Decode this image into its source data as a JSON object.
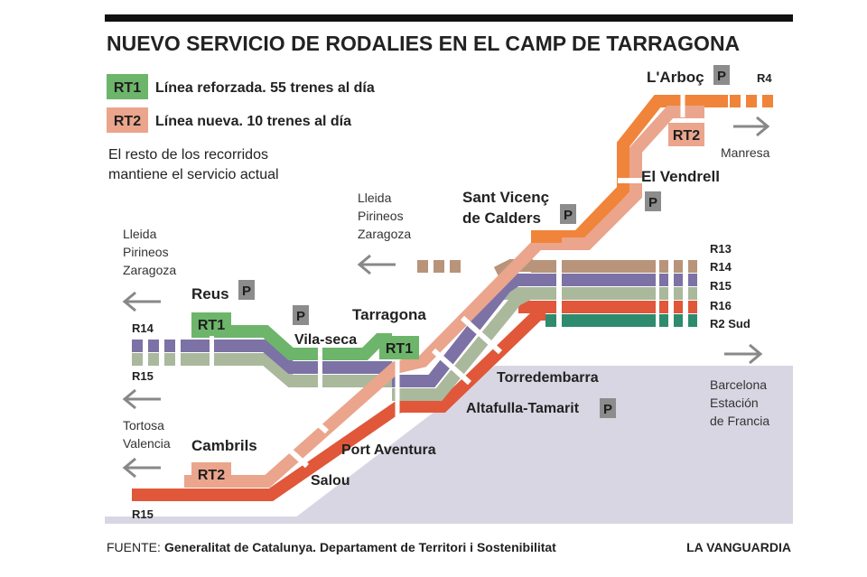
{
  "title": "NUEVO SERVICIO DE RODALIES EN EL CAMP DE TARRAGONA",
  "legend": {
    "rt1_code": "RT1",
    "rt1_text": "Línea reforzada. 55 trenes al día",
    "rt2_code": "RT2",
    "rt2_text": "Línea nueva. 10 trenes al día",
    "note_line1": "El resto de los recorridos",
    "note_line2": "mantiene el servicio actual"
  },
  "stations": {
    "arboc": "L'Arboç",
    "el_vendrell": "El Vendrell",
    "sant_vicenc_line1": "Sant Vicenç",
    "sant_vicenc_line2": "de Calders",
    "reus": "Reus",
    "vila_seca": "Vila-seca",
    "tarragona": "Tarragona",
    "torredembarra": "Torredembarra",
    "altafulla": "Altafulla-Tamarit",
    "port_aventura": "Port Aventura",
    "salou": "Salou",
    "cambrils": "Cambrils"
  },
  "badges": {
    "rt1": "RT1",
    "rt2": "RT2",
    "p": "P"
  },
  "line_codes": {
    "r4": "R4",
    "r13": "R13",
    "r14": "R14",
    "r15": "R15",
    "r16": "R16",
    "r2sud": "R2 Sud",
    "r14_west": "R14",
    "r15_west": "R15",
    "r15_south": "R15"
  },
  "destinations": {
    "manresa": "Manresa",
    "lleida_upper": [
      "Lleida",
      "Pirineos",
      "Zaragoza"
    ],
    "lleida_left": [
      "Lleida",
      "Pirineos",
      "Zaragoza"
    ],
    "tortosa": [
      "Tortosa",
      "Valencia"
    ],
    "barcelona": [
      "Barcelona",
      "Estación",
      "de Francia"
    ]
  },
  "footer": {
    "label": "FUENTE:",
    "source": "Generalitat de Catalunya. Departament de Territori i Sostenibilitat",
    "brand": "LA VANGUARDIA"
  },
  "colors": {
    "rt1": "#6db56a",
    "rt2": "#eaa58c",
    "r4": "#f0843a",
    "r13": "#b8947a",
    "r14": "#7c72a6",
    "r15": "#aab89c",
    "r16": "#e0573a",
    "r2sud": "#2e8b6e",
    "sea": "#d9d6e3",
    "p_badge": "#8c8c8c"
  }
}
